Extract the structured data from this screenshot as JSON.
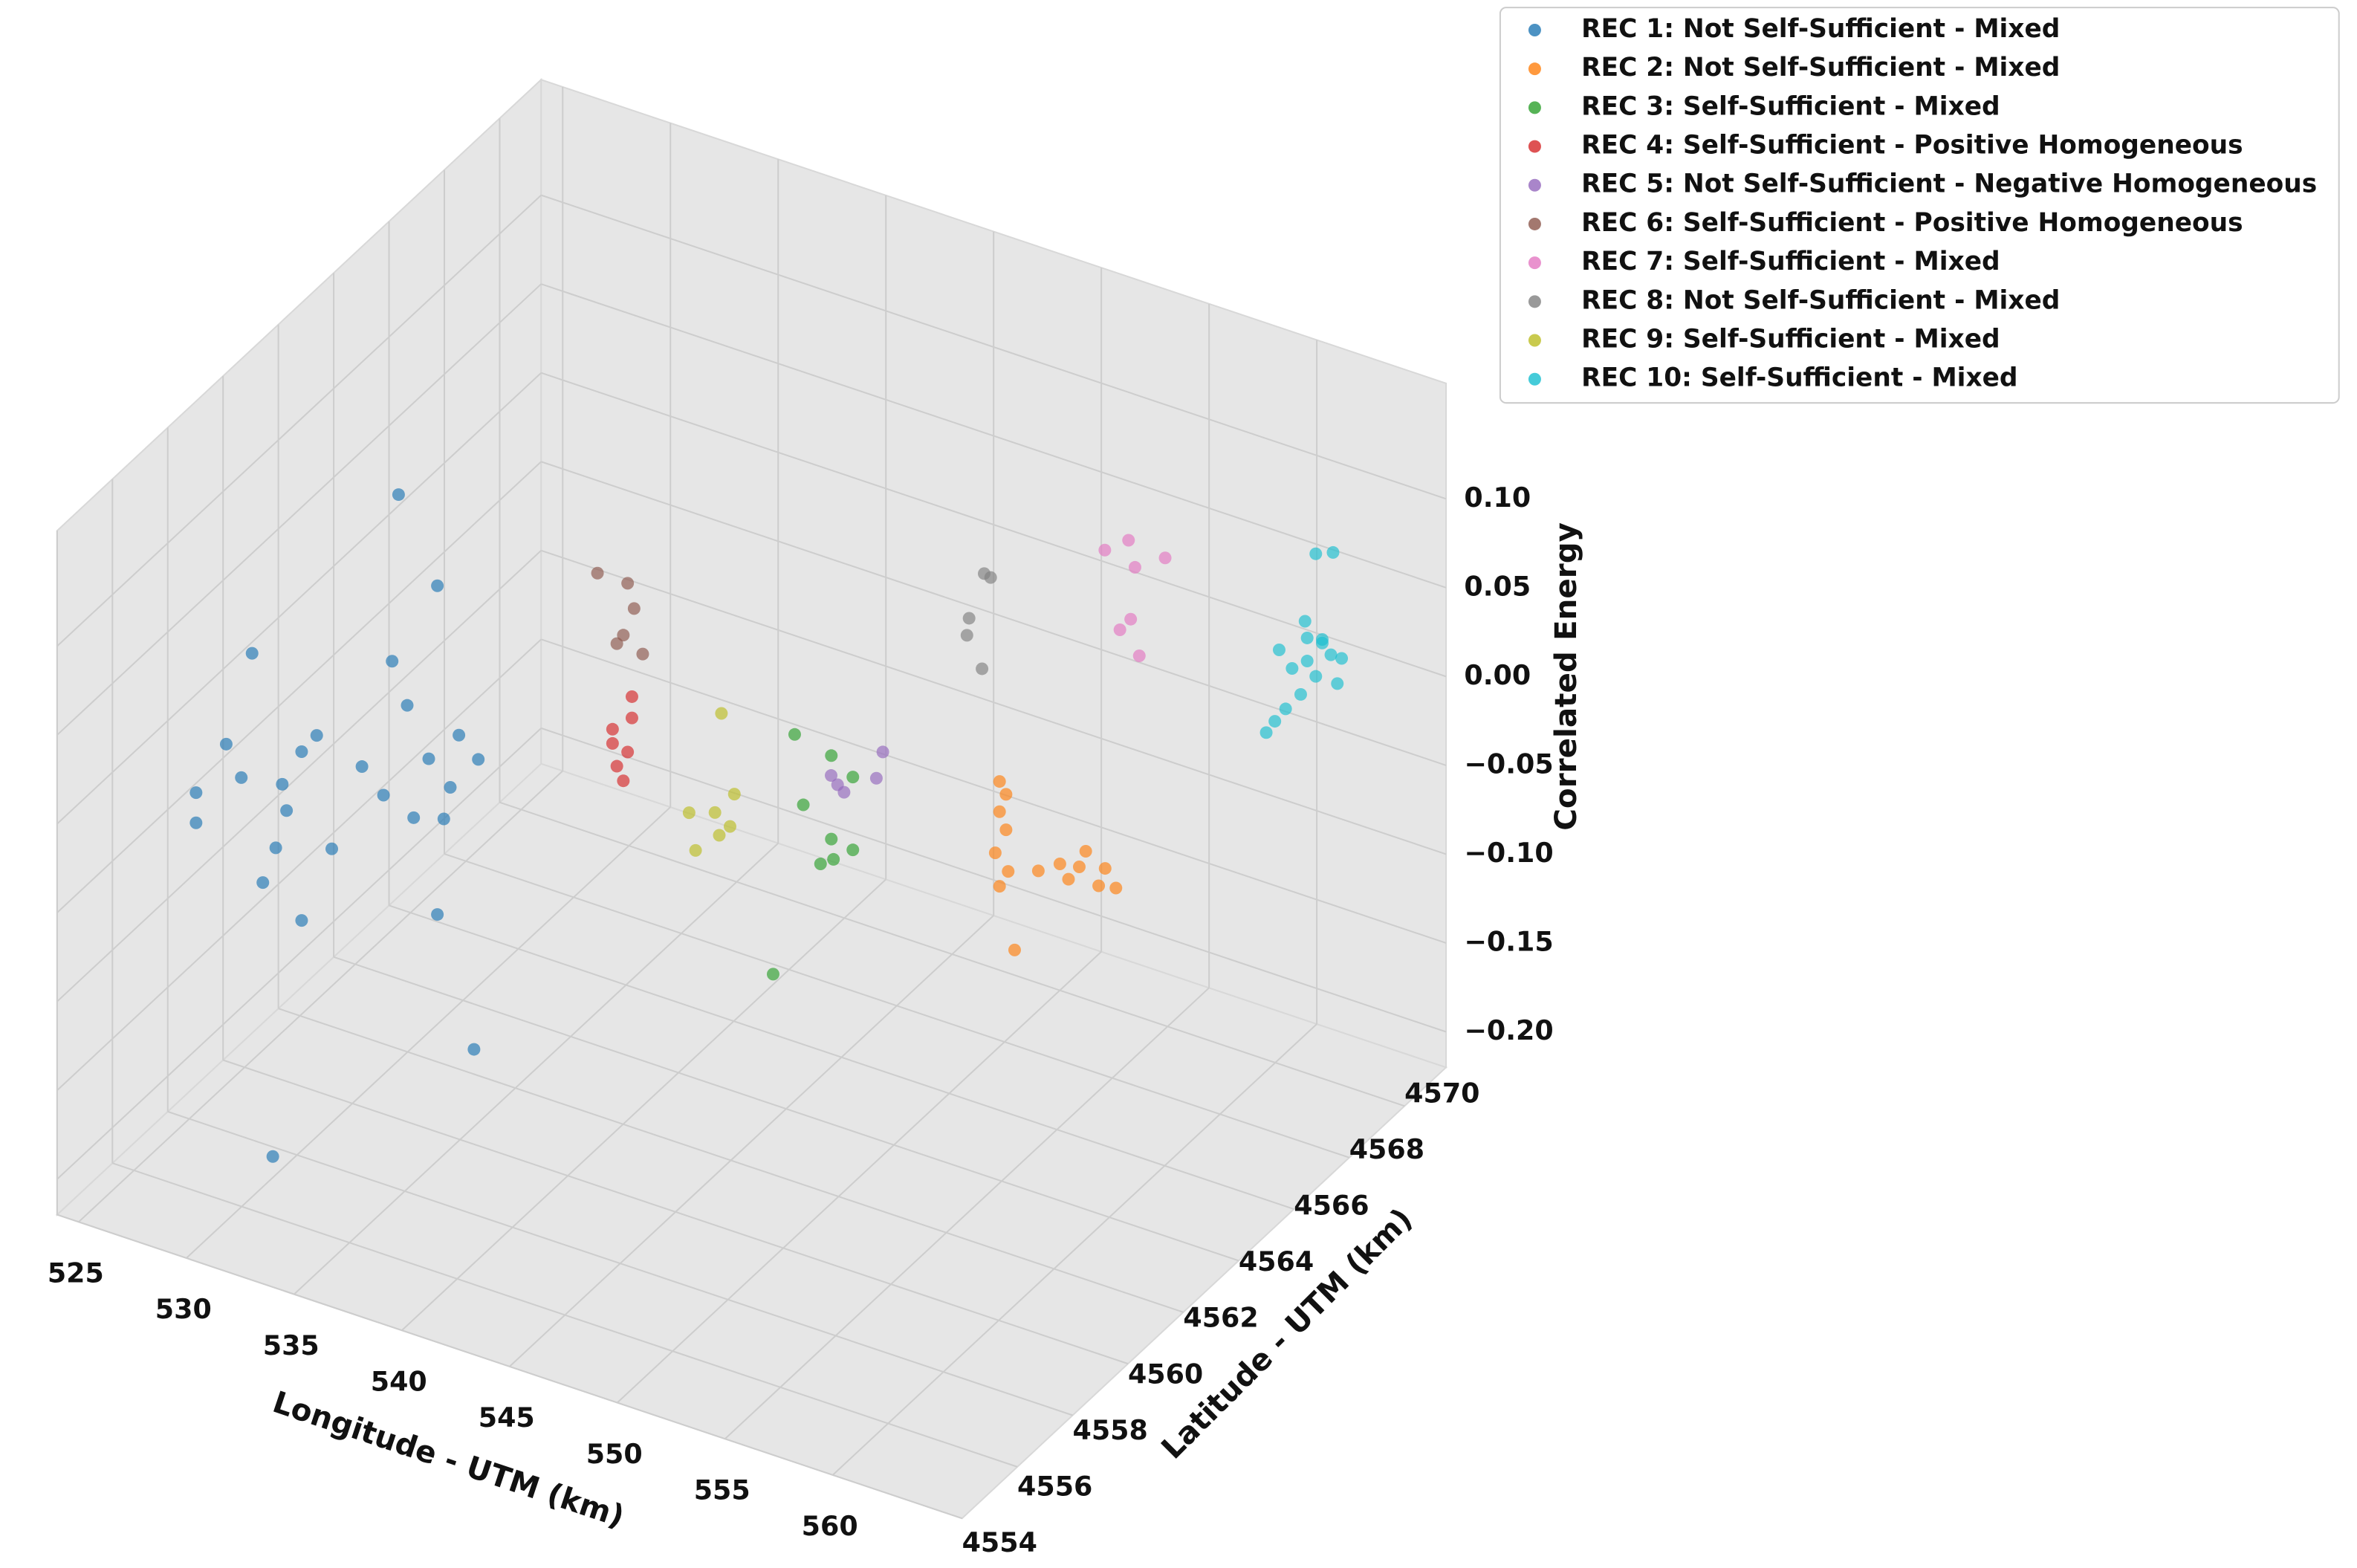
{
  "chart_data": {
    "type": "scatter",
    "xlabel": "Longitude - UTM (km)",
    "ylabel": "Latitude - UTM (km)",
    "zlabel": "Correlated Energy",
    "xlim": [
      524,
      566
    ],
    "ylim": [
      4554,
      4571.5
    ],
    "zlim": [
      -0.22,
      0.165
    ],
    "xticks": [
      525,
      530,
      535,
      540,
      545,
      550,
      555,
      560
    ],
    "yticks": [
      4554,
      4556,
      4558,
      4560,
      4562,
      4564,
      4566,
      4568,
      4570
    ],
    "zticks": [
      {
        "value": -0.2,
        "label": "−0.20"
      },
      {
        "value": -0.15,
        "label": "−0.15"
      },
      {
        "value": -0.1,
        "label": "−0.10"
      },
      {
        "value": -0.05,
        "label": "−0.05"
      },
      {
        "value": 0,
        "label": "0.00"
      },
      0.05,
      {
        "value": 0.1,
        "label": "0.10"
      }
    ],
    "grid": true,
    "legend": "upper right",
    "series": [
      {
        "name": "REC 1: Not Self-Sufficient - Mixed",
        "color": "#1f77b4",
        "x": [
          524.8,
          524.8,
          527.4,
          526.9,
          527.9,
          528.5,
          529.7,
          528.8,
          529.0,
          529.7,
          531.1,
          532.5,
          533.5,
          534.2,
          534.6,
          536.0,
          535.6,
          536.6,
          537.0,
          537.9,
          536.3,
          531.7,
          537.7,
          536.0,
          526.2,
          530.4,
          533.9,
          534.9
        ],
        "y": [
          4558.4,
          4558.4,
          4558.4,
          4558.4,
          4558.4,
          4558.4,
          4558.4,
          4558.4,
          4558.4,
          4558.4,
          4558.4,
          4558.4,
          4558.4,
          4558.4,
          4558.4,
          4558.4,
          4558.4,
          4558.4,
          4558.4,
          4558.4,
          4558.4,
          4555.8,
          4558.4,
          4558.4,
          4558.4,
          4558.4,
          4558.4,
          4558.4
        ],
        "z": [
          -0.043,
          -0.06,
          0.046,
          -0.026,
          -0.081,
          -0.059,
          0.0,
          -0.022,
          -0.036,
          -0.095,
          -0.049,
          0.003,
          -0.009,
          0.163,
          0.046,
          0.119,
          0.02,
          0.008,
          0.039,
          0.029,
          -0.011,
          -0.182,
          -0.135,
          -0.066,
          -0.01,
          0.012,
          0.068,
          -0.016
        ]
      },
      {
        "name": "REC 2: Not Self-Sufficient - Mixed",
        "color": "#ff7f0e",
        "x": [
          557.6,
          557.9,
          557.6,
          557.9,
          557.4,
          558.0,
          557.6,
          559.4,
          560.4,
          561.3,
          561.6,
          562.5,
          562.2,
          560.8,
          563.0,
          558.3
        ],
        "y": [
          4561.9,
          4561.9,
          4561.9,
          4561.9,
          4561.9,
          4561.9,
          4561.9,
          4561.9,
          4561.9,
          4561.9,
          4561.9,
          4561.9,
          4561.9,
          4561.9,
          4561.9,
          4561.9
        ],
        "z": [
          0.046,
          0.04,
          0.029,
          0.02,
          0.005,
          -0.003,
          -0.013,
          0.003,
          0.011,
          0.013,
          0.023,
          0.017,
          0.006,
          0.004,
          0.008,
          -0.046
        ]
      },
      {
        "name": "REC 3: Self-Sufficient - Mixed",
        "color": "#2ca02c",
        "x": [
          547.0,
          548.7,
          549.7,
          547.4,
          548.7,
          549.7,
          548.2,
          548.8,
          546.0
        ],
        "y": [
          4562.75,
          4562.75,
          4562.75,
          4562.75,
          4562.75,
          4562.75,
          4562.75,
          4562.75,
          4562.75
        ],
        "z": [
          0.017,
          0.012,
          0.004,
          -0.021,
          -0.035,
          -0.037,
          -0.051,
          -0.046,
          -0.122
        ]
      },
      {
        "name": "REC 4: Self-Sufficient - Positive Homogeneous",
        "color": "#d62728",
        "x": [
          536.3,
          536.3,
          537.2,
          537.2,
          537.0,
          536.8,
          536.5
        ],
        "y": [
          4564.5,
          4564.5,
          4564.5,
          4564.5,
          4564.5,
          4564.5,
          4564.5
        ],
        "z": [
          -0.049,
          -0.057,
          -0.027,
          -0.039,
          -0.059,
          -0.076,
          -0.069
        ]
      },
      {
        "name": "REC 5: Not Self-Sufficient - Negative Homogeneous",
        "color": "#9467bd",
        "x": [
          547.6,
          547.9,
          548.2,
          550.0,
          549.7
        ],
        "y": [
          4563.6,
          4563.6,
          4563.6,
          4563.6,
          4563.6
        ],
        "z": [
          -0.016,
          -0.02,
          -0.023,
          0.007,
          -0.009
        ]
      },
      {
        "name": "REC 6: Self-Sufficient - Positive Homogeneous",
        "color": "#8c564b",
        "x": [
          535.6,
          537.0,
          537.3,
          536.8,
          536.5,
          537.7
        ],
        "y": [
          4564.5,
          4564.5,
          4564.5,
          4564.5,
          4564.5,
          4564.5
        ],
        "z": [
          0.036,
          0.036,
          0.023,
          0.006,
          0.0,
          -0.001
        ]
      },
      {
        "name": "REC 7: Self-Sufficient - Mixed",
        "color": "#e377c2",
        "x": [
          553.5,
          554.6,
          556.3,
          554.9,
          554.7,
          554.2,
          555.1
        ],
        "y": [
          4568.9,
          4568.9,
          4568.9,
          4568.9,
          4568.9,
          4568.9,
          4568.9
        ],
        "z": [
          0.058,
          0.068,
          0.065,
          0.054,
          0.024,
          0.016,
          0.005
        ]
      },
      {
        "name": "REC 8: Not Self-Sufficient - Mixed",
        "color": "#7f7f7f",
        "x": [
          547.9,
          548.2,
          547.2,
          547.1,
          547.8
        ],
        "y": [
          4568.9,
          4568.9,
          4568.9,
          4568.9,
          4568.9
        ],
        "z": [
          0.022,
          0.021,
          -0.006,
          -0.016,
          -0.032
        ]
      },
      {
        "name": "REC 9: Self-Sufficient - Mixed",
        "color": "#bcbd22",
        "x": [
          543.6,
          542.1,
          543.3,
          544.2,
          543.5,
          544.0,
          542.4
        ],
        "y": [
          4562.75,
          4562.75,
          4562.75,
          4562.75,
          4562.75,
          4562.75,
          4562.75
        ],
        "z": [
          0.015,
          -0.047,
          -0.042,
          -0.028,
          -0.054,
          -0.047,
          -0.067
        ]
      },
      {
        "name": "REC 10: Self-Sufficient - Mixed",
        "color": "#17becf",
        "x": [
          562.2,
          563.0,
          561.7,
          562.5,
          562.9,
          561.8,
          561.1,
          560.5,
          563.4,
          562.2,
          563.2,
          561.5,
          560.8,
          560.3,
          559.9,
          562.5,
          561.8
        ],
        "y": [
          4569.75,
          4569.75,
          4569.75,
          4569.75,
          4569.75,
          4569.75,
          4569.75,
          4569.75,
          4569.75,
          4569.75,
          4569.75,
          4569.75,
          4569.75,
          4569.75,
          4569.75,
          4569.75,
          4569.75
        ],
        "z": [
          0.079,
          0.083,
          0.039,
          0.032,
          0.025,
          0.017,
          0.01,
          0.018,
          0.025,
          0.01,
          0.01,
          -0.003,
          -0.014,
          -0.023,
          -0.031,
          0.03,
          0.03
        ]
      }
    ]
  }
}
